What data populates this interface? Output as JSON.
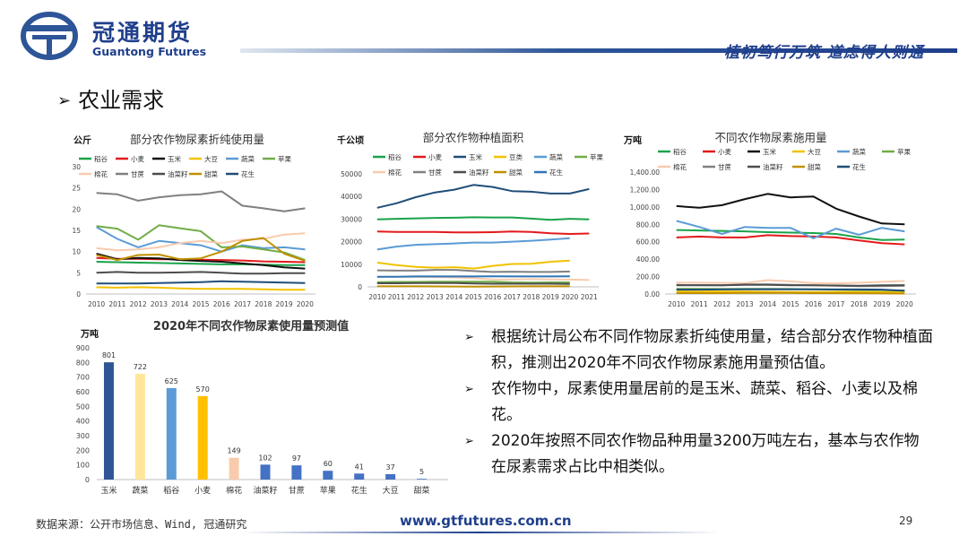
{
  "header": {
    "company_cn": "冠通期货",
    "company_en": "Guantong Futures",
    "slogan": "植初笃行万筑 道虑得人则通"
  },
  "section": {
    "title": "农业需求"
  },
  "bullets": [
    "根据统计局公布不同作物尿素折纯使用量，结合部分农作物种植面积，推测出2020年不同农作物尿素施用量预估值。",
    "农作物中，尿素使用量居前的是玉米、蔬菜、稻谷、小麦以及棉花。",
    "2020年按照不同农作物品种用量3200万吨左右，基本与农作物在尿素需求占比中相类似。"
  ],
  "footer": {
    "source": "数据来源：公开市场信息、Wind, 冠通研究",
    "website": "www.gtfutures.com.cn",
    "page": "29"
  },
  "chart_data": [
    {
      "id": "c1",
      "type": "line",
      "title": "部分农作物尿素折纯使用量",
      "unit": "公斤",
      "x": [
        "2010",
        "2011",
        "2012",
        "2013",
        "2014",
        "2015",
        "2016",
        "2017",
        "2018",
        "2019",
        "2020"
      ],
      "ylim": [
        0,
        30
      ],
      "yticks": [
        0,
        5,
        10,
        15,
        20,
        25,
        30
      ],
      "ytick_labels": [
        "0",
        "5",
        "10",
        "15",
        "20",
        "25",
        "30"
      ],
      "series": [
        {
          "name": "稻谷",
          "color": "#1aa34a",
          "values": [
            7.6,
            7.5,
            7.4,
            7.3,
            7.2,
            7.1,
            7.0,
            7.0,
            6.9,
            6.8,
            6.8
          ]
        },
        {
          "name": "小麦",
          "color": "#e31a1c",
          "values": [
            8.5,
            8.3,
            8.3,
            8.2,
            8.2,
            8.1,
            8.0,
            7.9,
            7.7,
            7.6,
            7.5
          ]
        },
        {
          "name": "玉米",
          "color": "#111111",
          "values": [
            9.5,
            8.2,
            8.5,
            8.4,
            8.0,
            7.8,
            7.6,
            7.2,
            6.8,
            6.3,
            6.0
          ]
        },
        {
          "name": "大豆",
          "color": "#f2c200",
          "values": [
            1.6,
            1.5,
            1.6,
            1.5,
            1.3,
            1.2,
            1.2,
            1.2,
            1.1,
            1.0,
            1.0
          ]
        },
        {
          "name": "蔬菜",
          "color": "#5b9bd5",
          "values": [
            15.8,
            13.0,
            11.0,
            12.5,
            12.0,
            11.5,
            10.0,
            11.5,
            10.8,
            11.0,
            10.5
          ]
        },
        {
          "name": "苹果",
          "color": "#70ad47",
          "values": [
            16.0,
            15.4,
            12.8,
            16.2,
            15.5,
            14.8,
            11.0,
            11.2,
            10.5,
            9.8,
            8.0
          ]
        },
        {
          "name": "棉花",
          "color": "#f8cbad",
          "values": [
            10.8,
            10.3,
            10.5,
            11.0,
            12.0,
            12.5,
            12.0,
            12.8,
            13.0,
            14.0,
            14.3
          ]
        },
        {
          "name": "甘蔗",
          "color": "#808080",
          "values": [
            23.8,
            23.5,
            22.0,
            22.8,
            23.3,
            23.5,
            24.2,
            20.8,
            20.2,
            19.5,
            20.2
          ]
        },
        {
          "name": "油菜籽",
          "color": "#4d4d4d",
          "values": [
            5.0,
            5.2,
            5.0,
            5.0,
            5.1,
            5.2,
            5.0,
            4.8,
            4.8,
            4.9,
            4.9
          ]
        },
        {
          "name": "甜菜",
          "color": "#c09000",
          "values": [
            9.2,
            8.0,
            9.2,
            9.3,
            8.2,
            8.4,
            10.0,
            12.5,
            13.2,
            9.5,
            7.8
          ]
        },
        {
          "name": "花生",
          "color": "#1f4e79",
          "values": [
            2.5,
            2.5,
            2.5,
            2.6,
            2.7,
            2.8,
            3.0,
            2.9,
            2.8,
            2.7,
            2.6
          ]
        }
      ]
    },
    {
      "id": "c2",
      "type": "line",
      "title": "部分农作物种植面积",
      "unit": "千公顷",
      "x": [
        "2010",
        "2011",
        "2012",
        "2013",
        "2014",
        "2015",
        "2016",
        "2017",
        "2018",
        "2019",
        "2020",
        "2021"
      ],
      "ylim": [
        0,
        50000
      ],
      "yticks": [
        0,
        10000,
        20000,
        30000,
        40000,
        50000
      ],
      "ytick_labels": [
        "0",
        "10000",
        "20000",
        "30000",
        "40000",
        "50000"
      ],
      "series": [
        {
          "name": "稻谷",
          "color": "#1aa34a",
          "values": [
            29900,
            30100,
            30300,
            30500,
            30600,
            30800,
            30700,
            30700,
            30200,
            29700,
            30100,
            29900
          ]
        },
        {
          "name": "小麦",
          "color": "#e31a1c",
          "values": [
            24500,
            24300,
            24300,
            24300,
            24100,
            24100,
            24200,
            24500,
            24300,
            23700,
            23400,
            23600
          ]
        },
        {
          "name": "玉米",
          "color": "#1f4e79",
          "values": [
            35000,
            37000,
            39700,
            41800,
            43000,
            45100,
            44200,
            42400,
            42100,
            41300,
            41300,
            43300
          ]
        },
        {
          "name": "豆类",
          "color": "#f2c200",
          "values": [
            10700,
            9600,
            8800,
            8500,
            8700,
            8100,
            9300,
            10100,
            10200,
            11100,
            11600,
            null
          ]
        },
        {
          "name": "蔬菜",
          "color": "#5b9bd5",
          "values": [
            16500,
            17800,
            18600,
            18900,
            19200,
            19600,
            19600,
            20000,
            20400,
            20900,
            21500,
            null
          ]
        },
        {
          "name": "苹果",
          "color": "#70ad47",
          "values": [
            2100,
            2200,
            2200,
            2300,
            2300,
            2300,
            2300,
            2000,
            1900,
            2000,
            2000,
            null
          ]
        },
        {
          "name": "棉花",
          "color": "#f8cbad",
          "values": [
            4400,
            4500,
            4400,
            4300,
            4200,
            3800,
            3300,
            3200,
            3400,
            3300,
            3200,
            3000
          ]
        },
        {
          "name": "甘蔗",
          "color": "#808080",
          "values": [
            7300,
            7200,
            7200,
            7500,
            7500,
            7000,
            6600,
            6700,
            6600,
            6600,
            6800,
            null
          ]
        },
        {
          "name": "油菜籽",
          "color": "#4d4d4d",
          "values": [
            1600,
            1600,
            1700,
            1700,
            1700,
            1500,
            1400,
            1400,
            1400,
            1400,
            1300,
            null
          ]
        },
        {
          "name": "甜菜",
          "color": "#c09000",
          "values": [
            220,
            230,
            220,
            180,
            140,
            130,
            160,
            200,
            220,
            220,
            230,
            null
          ]
        },
        {
          "name": "花生",
          "color": "#2e75b6",
          "values": [
            4500,
            4500,
            4600,
            4600,
            4600,
            4600,
            4700,
            4600,
            4600,
            4600,
            4700,
            null
          ]
        }
      ]
    },
    {
      "id": "c3",
      "type": "line",
      "title": "不同农作物尿素施用量",
      "unit": "万吨",
      "x": [
        "2010",
        "2011",
        "2012",
        "2013",
        "2014",
        "2015",
        "2016",
        "2017",
        "2018",
        "2019",
        "2020"
      ],
      "ylim": [
        0,
        1400
      ],
      "yticks": [
        0,
        200,
        400,
        600,
        800,
        1000,
        1200,
        1400
      ],
      "ytick_labels": [
        "0.00",
        "200.00",
        "400.00",
        "600.00",
        "800.00",
        "1,000.00",
        "1,200.00",
        "1,400.00"
      ],
      "series": [
        {
          "name": "稻谷",
          "color": "#1aa34a",
          "values": [
            735,
            730,
            725,
            720,
            710,
            705,
            700,
            690,
            650,
            620,
            625
          ]
        },
        {
          "name": "小麦",
          "color": "#e31a1c",
          "values": [
            650,
            660,
            650,
            650,
            675,
            665,
            660,
            650,
            615,
            585,
            570
          ]
        },
        {
          "name": "玉米",
          "color": "#111111",
          "values": [
            1010,
            990,
            1020,
            1090,
            1150,
            1110,
            1120,
            980,
            890,
            810,
            800
          ]
        },
        {
          "name": "大豆",
          "color": "#f2c200",
          "values": [
            30,
            28,
            30,
            28,
            26,
            24,
            24,
            25,
            24,
            24,
            25
          ]
        },
        {
          "name": "蔬菜",
          "color": "#5b9bd5",
          "values": [
            840,
            770,
            690,
            770,
            760,
            760,
            640,
            750,
            680,
            760,
            720
          ]
        },
        {
          "name": "苹果",
          "color": "#70ad47",
          "values": [
            60,
            60,
            58,
            60,
            60,
            58,
            55,
            50,
            45,
            45,
            40
          ]
        },
        {
          "name": "棉花",
          "color": "#f8cbad",
          "values": [
            130,
            130,
            128,
            125,
            160,
            145,
            125,
            120,
            130,
            140,
            150
          ]
        },
        {
          "name": "甘蔗",
          "color": "#808080",
          "values": [
            105,
            100,
            100,
            110,
            110,
            105,
            100,
            95,
            90,
            90,
            95
          ]
        },
        {
          "name": "油菜籽",
          "color": "#4d4d4d",
          "values": [
            100,
            102,
            100,
            105,
            105,
            100,
            100,
            98,
            96,
            100,
            102
          ]
        },
        {
          "name": "甜菜",
          "color": "#c09000",
          "values": [
            10,
            10,
            10,
            12,
            12,
            12,
            10,
            10,
            9,
            8,
            5
          ]
        },
        {
          "name": "花生",
          "color": "#1f4e79",
          "values": [
            50,
            50,
            52,
            55,
            55,
            55,
            55,
            53,
            52,
            50,
            37
          ]
        }
      ]
    },
    {
      "id": "c4",
      "type": "bar",
      "title": "2020年不同农作物尿素使用量预测值",
      "unit": "万吨",
      "categories": [
        "玉米",
        "蔬菜",
        "稻谷",
        "小麦",
        "棉花",
        "油菜籽",
        "甘蔗",
        "苹果",
        "花生",
        "大豆",
        "甜菜"
      ],
      "values": [
        801,
        722,
        625,
        570,
        149,
        102,
        97,
        60,
        41,
        37,
        5
      ],
      "colors": [
        "#2f5597",
        "#ffe699",
        "#5b9bd5",
        "#ffc000",
        "#f8cbad",
        "#4472c4",
        "#4472c4",
        "#4472c4",
        "#4472c4",
        "#4472c4",
        "#4472c4"
      ],
      "ylim": [
        0,
        900
      ],
      "yticks": [
        0,
        100,
        200,
        300,
        400,
        500,
        600,
        700,
        800,
        900
      ]
    }
  ]
}
